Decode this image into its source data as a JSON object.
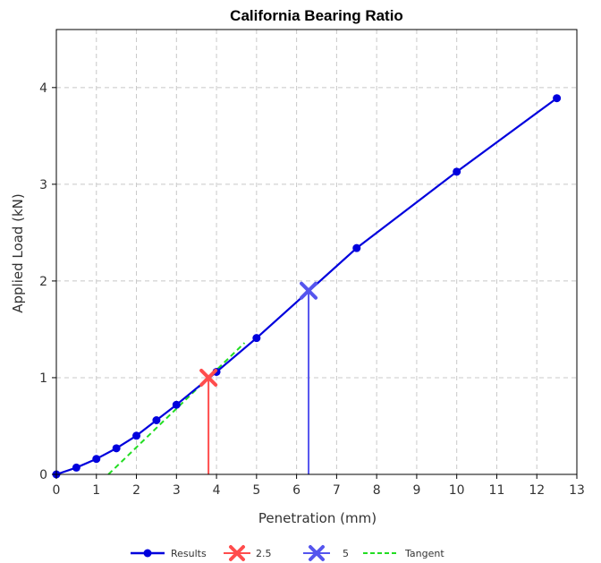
{
  "chart_data": {
    "type": "line",
    "title": "California Bearing Ratio",
    "xlabel": "Penetration (mm)",
    "ylabel": "Applied Load (kN)",
    "xlim": [
      0,
      13
    ],
    "ylim": [
      0,
      4.6
    ],
    "x_ticks": [
      "0",
      "1",
      "2",
      "3",
      "4",
      "5",
      "6",
      "7",
      "8",
      "9",
      "10",
      "11",
      "12",
      "13"
    ],
    "y_ticks": [
      "0",
      "1",
      "2",
      "3",
      "4"
    ],
    "grid": true,
    "legend_placement": "bottom",
    "series": [
      {
        "name": "Results",
        "color": "#0000dd",
        "x": [
          0,
          0.5,
          1,
          1.5,
          2,
          2.5,
          3,
          4,
          5,
          7.5,
          10,
          12.5
        ],
        "y": [
          0,
          0.07,
          0.16,
          0.27,
          0.4,
          0.56,
          0.72,
          1.06,
          1.41,
          2.34,
          3.13,
          3.89
        ]
      },
      {
        "name": "2.5",
        "color": "#ff4d4d",
        "marker": "x",
        "x": 3.8,
        "y": 1.0
      },
      {
        "name": "5",
        "color": "#5555ee",
        "marker": "x",
        "x": 6.3,
        "y": 1.9
      },
      {
        "name": "Tangent",
        "color": "#22dd22",
        "dashed": true,
        "x": [
          1.3,
          4.7
        ],
        "y": [
          0,
          1.36
        ]
      }
    ]
  }
}
